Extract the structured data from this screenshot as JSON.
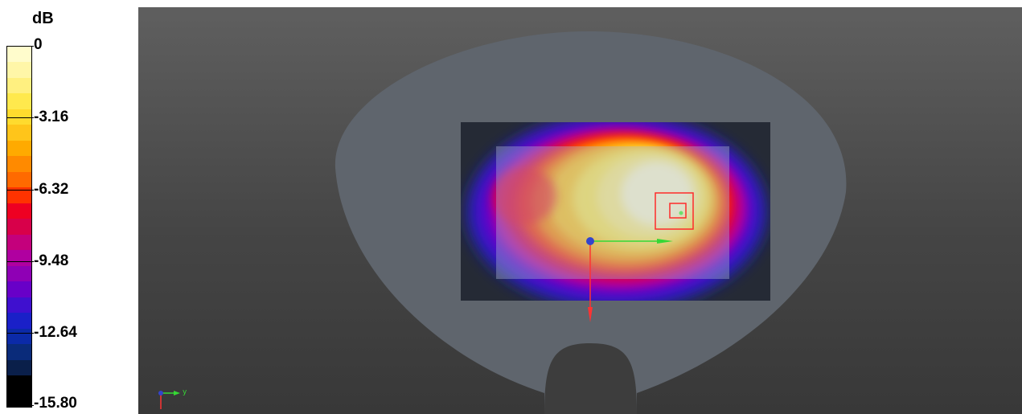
{
  "legend": {
    "unit": "dB",
    "ticks": [
      "0",
      "-3.16",
      "-6.32",
      "-9.48",
      "-12.64",
      "-15.80"
    ],
    "band_colors": [
      "#fffccc",
      "#fff6a8",
      "#fff080",
      "#ffe94d",
      "#ffdb2e",
      "#ffc51a",
      "#ffaa00",
      "#ff8a00",
      "#ff6a00",
      "#ff3300",
      "#ee0022",
      "#d8004a",
      "#c4007c",
      "#b000a0",
      "#8f00b5",
      "#6800c8",
      "#3f10cf",
      "#1a20c8",
      "#0b2aa8",
      "#0a2b7a",
      "#0a1f4a",
      "#000000",
      "#000000"
    ]
  },
  "viewport": {
    "background_colors": [
      "#5f5f5f",
      "#383838"
    ],
    "phantom_color": "#5f656d",
    "scan_area_color": "#252a35",
    "axis_label": "y"
  }
}
